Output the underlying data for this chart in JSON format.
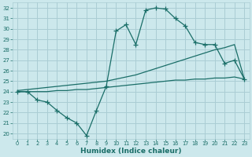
{
  "xlabel": "Humidex (Indice chaleur)",
  "xlim": [
    -0.5,
    23.5
  ],
  "ylim": [
    19.5,
    32.5
  ],
  "xticks": [
    0,
    1,
    2,
    3,
    4,
    5,
    6,
    7,
    8,
    9,
    10,
    11,
    12,
    13,
    14,
    15,
    16,
    17,
    18,
    19,
    20,
    21,
    22,
    23
  ],
  "yticks": [
    20,
    21,
    22,
    23,
    24,
    25,
    26,
    27,
    28,
    29,
    30,
    31,
    32
  ],
  "bg_color": "#cce8ec",
  "grid_color": "#aacdd4",
  "line_color": "#1a6e68",
  "line1_x": [
    0,
    1,
    2,
    3,
    4,
    5,
    6,
    7,
    8,
    9,
    10,
    11,
    12,
    13,
    14,
    15,
    16,
    17,
    18,
    19,
    20,
    21,
    22,
    23
  ],
  "line1_y": [
    24.0,
    24.0,
    23.2,
    23.0,
    22.2,
    21.5,
    21.0,
    19.8,
    22.2,
    24.5,
    29.8,
    30.4,
    28.5,
    31.8,
    32.0,
    31.9,
    31.0,
    30.3,
    28.7,
    28.5,
    28.5,
    26.7,
    27.0,
    25.2
  ],
  "line2_x": [
    0,
    1,
    2,
    3,
    4,
    5,
    6,
    7,
    8,
    9,
    10,
    11,
    12,
    13,
    14,
    15,
    16,
    17,
    18,
    19,
    20,
    21,
    22,
    23
  ],
  "line2_y": [
    24.1,
    24.2,
    24.3,
    24.4,
    24.5,
    24.6,
    24.7,
    24.8,
    24.9,
    25.0,
    25.2,
    25.4,
    25.6,
    25.9,
    26.2,
    26.5,
    26.8,
    27.1,
    27.4,
    27.7,
    28.0,
    28.2,
    28.5,
    25.2
  ],
  "line3_x": [
    0,
    1,
    2,
    3,
    4,
    5,
    6,
    7,
    8,
    9,
    10,
    11,
    12,
    13,
    14,
    15,
    16,
    17,
    18,
    19,
    20,
    21,
    22,
    23
  ],
  "line3_y": [
    24.0,
    24.0,
    24.0,
    24.0,
    24.1,
    24.1,
    24.2,
    24.2,
    24.3,
    24.4,
    24.5,
    24.6,
    24.7,
    24.8,
    24.9,
    25.0,
    25.1,
    25.1,
    25.2,
    25.2,
    25.3,
    25.3,
    25.4,
    25.2
  ]
}
